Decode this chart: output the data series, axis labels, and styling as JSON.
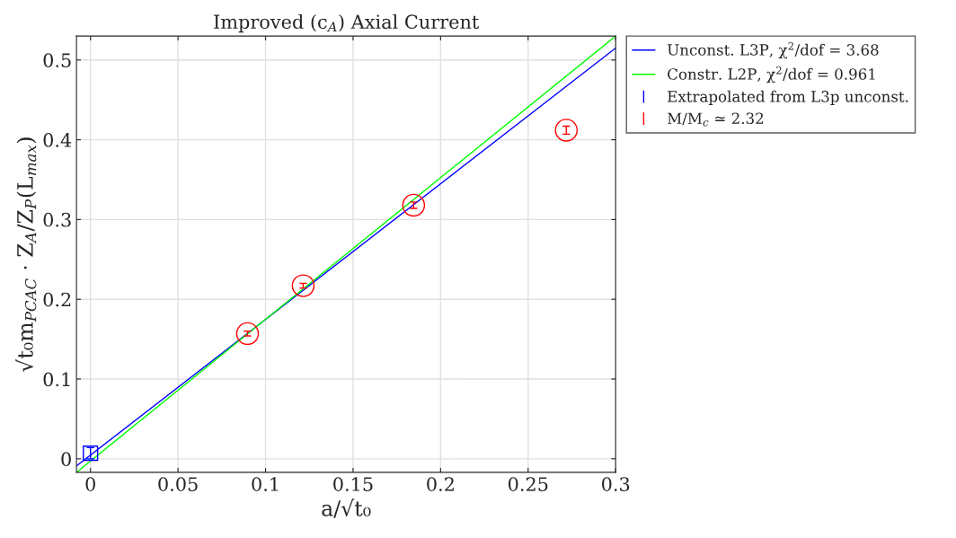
{
  "chart_data": {
    "type": "scatter",
    "title": "Improved (c$_{A}$) Axial Current",
    "xlabel": "a/√t₀",
    "ylabel": "√t₀m$_{PCAC}$ · Z$_{A}$/Z$_{P}$(L$_{max}$)",
    "xlim": [
      -0.008,
      0.3
    ],
    "ylim": [
      -0.017,
      0.53
    ],
    "xticks": [
      0,
      0.05,
      0.1,
      0.15,
      0.2,
      0.25,
      0.3
    ],
    "yticks": [
      0,
      0.1,
      0.2,
      0.3,
      0.4,
      0.5
    ],
    "grid": true,
    "legend": "top right",
    "series": [
      {
        "name": "Unconst. L3P, χ$^{2}$/dof = 3.68",
        "type": "line",
        "color": "#0000ff",
        "x": [
          -0.008,
          0.3
        ],
        "values": [
          -0.009,
          0.515
        ],
        "marker": "none"
      },
      {
        "name": "Constr. L2P, χ$^{2}$/dof = 0.961",
        "type": "line",
        "color": "#00ff00",
        "x": [
          -0.008,
          0.3
        ],
        "values": [
          -0.017,
          0.53
        ],
        "marker": "none"
      },
      {
        "name": "Extrapolated from L3p unconst.",
        "color": "#0000ff",
        "x": [
          0
        ],
        "values": [
          0.007
        ],
        "errors": [
          0.007
        ],
        "marker": "square"
      },
      {
        "name": "M/M$_{c}$ ≃ 2.32",
        "color": "#ff0000",
        "x": [
          0.0897,
          0.1215,
          0.1846,
          0.2718
        ],
        "values": [
          0.157,
          0.217,
          0.318,
          0.412
        ],
        "errors": [
          0.003,
          0.003,
          0.004,
          0.005
        ],
        "marker": "circle"
      }
    ]
  }
}
